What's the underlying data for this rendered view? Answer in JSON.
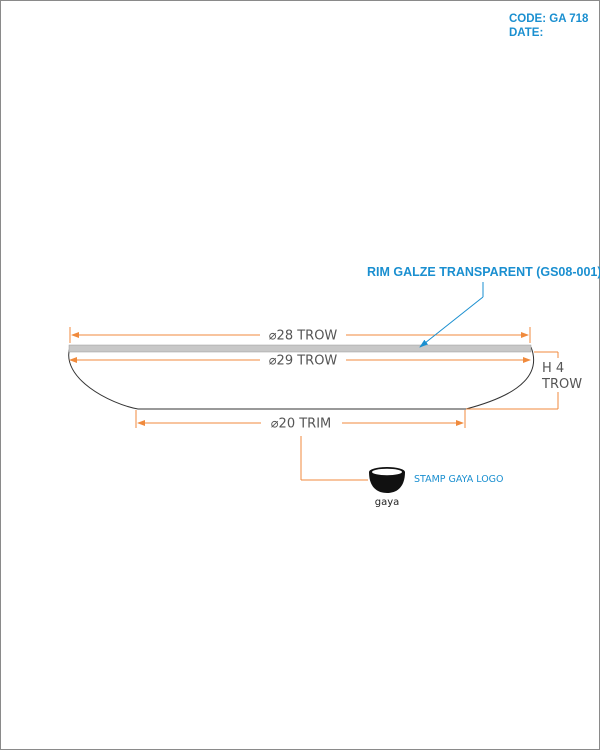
{
  "header": {
    "code": "CODE: GA 718",
    "date": "DATE:"
  },
  "callouts": {
    "rim_glaze": "RIM GALZE TRANSPARENT (GS08-001)",
    "stamp": "STAMP GAYA LOGO"
  },
  "dimensions": {
    "rim_inner": "⌀28 TROW",
    "rim_outer": "⌀29 TROW",
    "height_line1": "H 4",
    "height_line2": "TROW",
    "base": "⌀20 TRIM"
  },
  "logo": {
    "text": "gaya"
  },
  "colors": {
    "dimension_lines": "#f08a3c",
    "callout_text": "#1a8fd0",
    "body_outline": "#333333",
    "rim_glaze": "#c8c8c8"
  }
}
